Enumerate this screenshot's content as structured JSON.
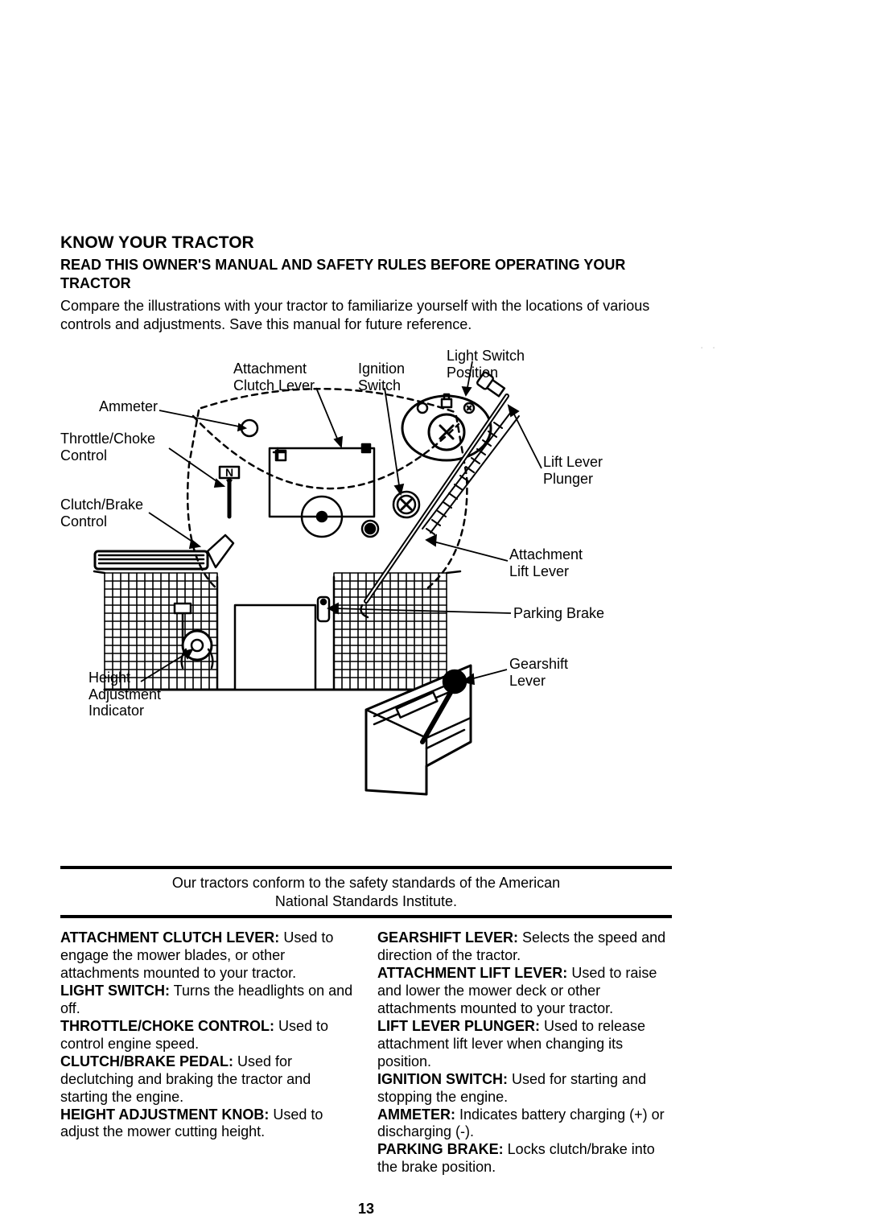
{
  "heading": "KNOW YOUR TRACTOR",
  "subheading": "READ THIS OWNER'S MANUAL AND SAFETY RULES BEFORE OPERATING YOUR TRACTOR",
  "intro": "Compare the illustrations with your tractor to familiarize yourself with the locations of various controls and adjustments. Save this manual for future reference.",
  "labels": {
    "light_switch": "Light Switch\nPosition",
    "attachment_clutch": "Attachment\nClutch Lever",
    "ignition": "Ignition\nSwitch",
    "ammeter": "Ammeter",
    "throttle": "Throttle/Choke\nControl",
    "clutch_brake": "Clutch/Brake\nControl",
    "lift_plunger": "Lift Lever\nPlunger",
    "attach_lift": "Attachment\nLift Lever",
    "parking_brake": "Parking Brake",
    "gearshift": "Gearshift\nLever",
    "height_adj": "Height\nAdjustment\nIndicator"
  },
  "caption": "Our tractors conform to the safety standards of the American\nNational Standards Institute.",
  "defs_col1": [
    {
      "term": "ATTACHMENT CLUTCH LEVER:",
      "text": " Used to engage the mower blades, or other attachments mounted to your tractor."
    },
    {
      "term": "LIGHT SWITCH:",
      "text": " Turns the headlights on and off."
    },
    {
      "term": "THROTTLE/CHOKE CONTROL:",
      "text": " Used to control engine speed."
    },
    {
      "term": "CLUTCH/BRAKE PEDAL:",
      "text": " Used for declutching and braking the tractor and starting the engine."
    },
    {
      "term": "HEIGHT ADJUSTMENT KNOB:",
      "text": " Used to adjust the mower cutting height."
    }
  ],
  "defs_col2": [
    {
      "term": "GEARSHIFT LEVER:",
      "text": " Selects the speed and direction of the tractor."
    },
    {
      "term": "ATTACHMENT LIFT LEVER:",
      "text": " Used to raise and lower the mower deck or other attachments mounted to your tractor."
    },
    {
      "term": "LIFT LEVER PLUNGER:",
      "text": " Used to release attachment lift lever when changing its position."
    },
    {
      "term": "IGNITION SWITCH:",
      "text": " Used for starting and stopping the engine."
    },
    {
      "term": "AMMETER:",
      "text": " Indicates battery charging (+) or discharging (-)."
    },
    {
      "term": "PARKING BRAKE:",
      "text": " Locks clutch/brake into the brake position."
    }
  ],
  "pagenum": "13",
  "faint": ". .",
  "stroke": "#000000",
  "stroke_thick": 4,
  "stroke_med": 2.5,
  "stroke_thin": 1.6,
  "bg": "#ffffff"
}
